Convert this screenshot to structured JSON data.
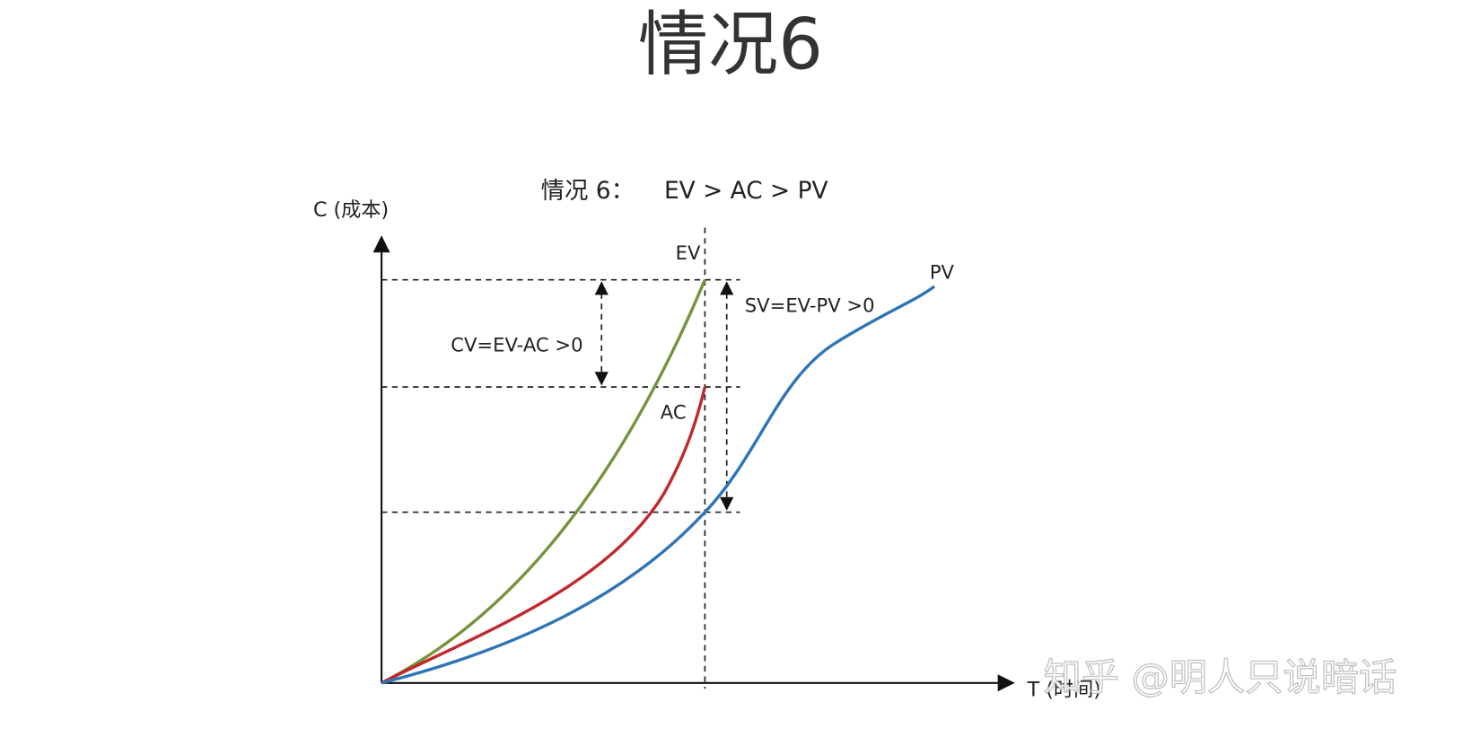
{
  "header": {
    "title": "情况6"
  },
  "diagram": {
    "subtitle_prefix": "情况 6：",
    "subtitle": "EV > AC > PV",
    "y_axis_label": "C (成本)",
    "x_axis_label": "T (时间)",
    "curves": [
      {
        "label": "EV",
        "color": "#77933c"
      },
      {
        "label": "AC",
        "color": "#c0282d"
      },
      {
        "label": "PV",
        "color": "#2e75b6"
      }
    ],
    "annotations": {
      "cv": "CV=EV-AC >0",
      "sv": "SV=EV-PV >0"
    }
  },
  "watermark": "知乎 @明人只说暗话"
}
